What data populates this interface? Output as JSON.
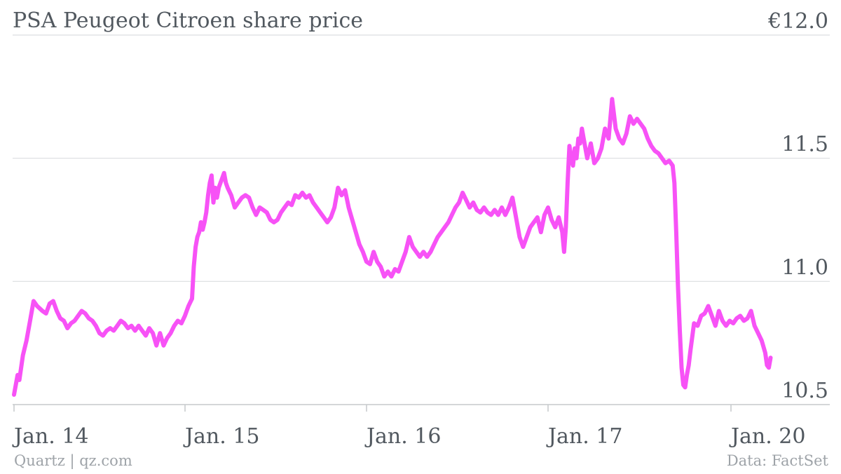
{
  "chart_data": {
    "type": "line",
    "title": "PSA Peugeot Citroen share price",
    "xlabel": "",
    "ylabel": "",
    "y_unit_prefix": "€",
    "ylim": [
      10.5,
      12.0
    ],
    "y_ticks": [
      {
        "value": 12.0,
        "label": "€12.0"
      },
      {
        "value": 11.5,
        "label": "11.5"
      },
      {
        "value": 11.0,
        "label": "11.0"
      },
      {
        "value": 10.5,
        "label": "10.5"
      }
    ],
    "x_ticks": [
      {
        "index": 0,
        "label": "Jan. 14"
      },
      {
        "index": 1,
        "label": "Jan. 15"
      },
      {
        "index": 2,
        "label": "Jan. 16"
      },
      {
        "index": 3,
        "label": "Jan. 17"
      },
      {
        "index": 4,
        "label": "Jan. 20"
      }
    ],
    "x_range": [
      0,
      4.55
    ],
    "grid": true,
    "series": [
      {
        "color": "#f752f6",
        "points": [
          [
            0.0,
            10.54
          ],
          [
            0.02,
            10.62
          ],
          [
            0.03,
            10.6
          ],
          [
            0.05,
            10.7
          ],
          [
            0.07,
            10.76
          ],
          [
            0.09,
            10.84
          ],
          [
            0.11,
            10.92
          ],
          [
            0.13,
            10.9
          ],
          [
            0.16,
            10.88
          ],
          [
            0.18,
            10.87
          ],
          [
            0.2,
            10.91
          ],
          [
            0.22,
            10.92
          ],
          [
            0.24,
            10.88
          ],
          [
            0.26,
            10.85
          ],
          [
            0.28,
            10.84
          ],
          [
            0.3,
            10.81
          ],
          [
            0.32,
            10.83
          ],
          [
            0.34,
            10.84
          ],
          [
            0.36,
            10.86
          ],
          [
            0.38,
            10.88
          ],
          [
            0.4,
            10.87
          ],
          [
            0.42,
            10.85
          ],
          [
            0.44,
            10.84
          ],
          [
            0.46,
            10.82
          ],
          [
            0.48,
            10.79
          ],
          [
            0.5,
            10.78
          ],
          [
            0.52,
            10.8
          ],
          [
            0.54,
            10.81
          ],
          [
            0.56,
            10.8
          ],
          [
            0.58,
            10.82
          ],
          [
            0.6,
            10.84
          ],
          [
            0.62,
            10.83
          ],
          [
            0.64,
            10.81
          ],
          [
            0.66,
            10.82
          ],
          [
            0.68,
            10.8
          ],
          [
            0.7,
            10.82
          ],
          [
            0.72,
            10.8
          ],
          [
            0.74,
            10.78
          ],
          [
            0.76,
            10.81
          ],
          [
            0.78,
            10.79
          ],
          [
            0.8,
            10.74
          ],
          [
            0.82,
            10.79
          ],
          [
            0.84,
            10.74
          ],
          [
            0.86,
            10.77
          ],
          [
            0.88,
            10.79
          ],
          [
            0.9,
            10.82
          ],
          [
            0.92,
            10.84
          ],
          [
            0.94,
            10.83
          ],
          [
            0.96,
            10.86
          ],
          [
            0.98,
            10.9
          ],
          [
            1.0,
            10.93
          ],
          [
            1.01,
            11.06
          ],
          [
            1.02,
            11.14
          ],
          [
            1.03,
            11.18
          ],
          [
            1.04,
            11.2
          ],
          [
            1.05,
            11.24
          ],
          [
            1.06,
            11.21
          ],
          [
            1.07,
            11.24
          ],
          [
            1.08,
            11.28
          ],
          [
            1.09,
            11.35
          ],
          [
            1.1,
            11.4
          ],
          [
            1.11,
            11.43
          ],
          [
            1.12,
            11.32
          ],
          [
            1.13,
            11.38
          ],
          [
            1.14,
            11.34
          ],
          [
            1.15,
            11.38
          ],
          [
            1.16,
            11.4
          ],
          [
            1.17,
            11.42
          ],
          [
            1.18,
            11.44
          ],
          [
            1.19,
            11.4
          ],
          [
            1.2,
            11.38
          ],
          [
            1.22,
            11.35
          ],
          [
            1.24,
            11.3
          ],
          [
            1.26,
            11.32
          ],
          [
            1.28,
            11.34
          ],
          [
            1.3,
            11.35
          ],
          [
            1.32,
            11.34
          ],
          [
            1.34,
            11.3
          ],
          [
            1.36,
            11.27
          ],
          [
            1.38,
            11.3
          ],
          [
            1.4,
            11.29
          ],
          [
            1.42,
            11.28
          ],
          [
            1.44,
            11.25
          ],
          [
            1.46,
            11.24
          ],
          [
            1.48,
            11.25
          ],
          [
            1.5,
            11.28
          ],
          [
            1.52,
            11.3
          ],
          [
            1.54,
            11.32
          ],
          [
            1.56,
            11.31
          ],
          [
            1.58,
            11.35
          ],
          [
            1.6,
            11.34
          ],
          [
            1.62,
            11.36
          ],
          [
            1.64,
            11.34
          ],
          [
            1.66,
            11.35
          ],
          [
            1.68,
            11.32
          ],
          [
            1.7,
            11.3
          ],
          [
            1.72,
            11.28
          ],
          [
            1.74,
            11.26
          ],
          [
            1.76,
            11.24
          ],
          [
            1.78,
            11.26
          ],
          [
            1.8,
            11.3
          ],
          [
            1.82,
            11.38
          ],
          [
            1.84,
            11.35
          ],
          [
            1.86,
            11.37
          ],
          [
            1.88,
            11.3
          ],
          [
            1.9,
            11.25
          ],
          [
            1.92,
            11.2
          ],
          [
            1.94,
            11.15
          ],
          [
            1.96,
            11.12
          ],
          [
            1.98,
            11.08
          ],
          [
            2.0,
            11.07
          ],
          [
            2.02,
            11.12
          ],
          [
            2.04,
            11.08
          ],
          [
            2.06,
            11.06
          ],
          [
            2.08,
            11.02
          ],
          [
            2.1,
            11.04
          ],
          [
            2.12,
            11.02
          ],
          [
            2.14,
            11.05
          ],
          [
            2.16,
            11.04
          ],
          [
            2.18,
            11.08
          ],
          [
            2.2,
            11.12
          ],
          [
            2.22,
            11.18
          ],
          [
            2.24,
            11.14
          ],
          [
            2.26,
            11.12
          ],
          [
            2.28,
            11.1
          ],
          [
            2.3,
            11.12
          ],
          [
            2.32,
            11.1
          ],
          [
            2.34,
            11.12
          ],
          [
            2.36,
            11.15
          ],
          [
            2.38,
            11.18
          ],
          [
            2.4,
            11.2
          ],
          [
            2.42,
            11.22
          ],
          [
            2.44,
            11.24
          ],
          [
            2.46,
            11.27
          ],
          [
            2.48,
            11.3
          ],
          [
            2.5,
            11.32
          ],
          [
            2.52,
            11.36
          ],
          [
            2.54,
            11.33
          ],
          [
            2.56,
            11.3
          ],
          [
            2.58,
            11.32
          ],
          [
            2.6,
            11.29
          ],
          [
            2.62,
            11.28
          ],
          [
            2.64,
            11.3
          ],
          [
            2.66,
            11.28
          ],
          [
            2.68,
            11.27
          ],
          [
            2.7,
            11.29
          ],
          [
            2.72,
            11.27
          ],
          [
            2.74,
            11.3
          ],
          [
            2.76,
            11.27
          ],
          [
            2.78,
            11.3
          ],
          [
            2.8,
            11.34
          ],
          [
            2.82,
            11.26
          ],
          [
            2.84,
            11.18
          ],
          [
            2.86,
            11.14
          ],
          [
            2.88,
            11.18
          ],
          [
            2.9,
            11.22
          ],
          [
            2.92,
            11.24
          ],
          [
            2.94,
            11.26
          ],
          [
            2.96,
            11.2
          ],
          [
            2.98,
            11.27
          ],
          [
            3.0,
            11.3
          ],
          [
            3.02,
            11.25
          ],
          [
            3.04,
            11.22
          ],
          [
            3.06,
            11.26
          ],
          [
            3.08,
            11.2
          ],
          [
            3.09,
            11.12
          ],
          [
            3.1,
            11.22
          ],
          [
            3.11,
            11.4
          ],
          [
            3.12,
            11.55
          ],
          [
            3.13,
            11.5
          ],
          [
            3.14,
            11.47
          ],
          [
            3.15,
            11.54
          ],
          [
            3.16,
            11.5
          ],
          [
            3.17,
            11.58
          ],
          [
            3.18,
            11.56
          ],
          [
            3.19,
            11.62
          ],
          [
            3.2,
            11.58
          ],
          [
            3.22,
            11.5
          ],
          [
            3.24,
            11.56
          ],
          [
            3.26,
            11.48
          ],
          [
            3.28,
            11.5
          ],
          [
            3.3,
            11.54
          ],
          [
            3.32,
            11.62
          ],
          [
            3.34,
            11.58
          ],
          [
            3.36,
            11.74
          ],
          [
            3.38,
            11.62
          ],
          [
            3.4,
            11.58
          ],
          [
            3.42,
            11.56
          ],
          [
            3.44,
            11.6
          ],
          [
            3.46,
            11.67
          ],
          [
            3.48,
            11.64
          ],
          [
            3.5,
            11.66
          ],
          [
            3.52,
            11.64
          ],
          [
            3.54,
            11.62
          ],
          [
            3.56,
            11.58
          ],
          [
            3.58,
            11.55
          ],
          [
            3.6,
            11.53
          ],
          [
            3.62,
            11.52
          ],
          [
            3.64,
            11.5
          ],
          [
            3.66,
            11.48
          ],
          [
            3.68,
            11.49
          ],
          [
            3.7,
            11.47
          ],
          [
            3.71,
            11.4
          ],
          [
            3.72,
            11.2
          ],
          [
            3.73,
            10.98
          ],
          [
            3.74,
            10.8
          ],
          [
            3.75,
            10.65
          ],
          [
            3.76,
            10.58
          ],
          [
            3.77,
            10.57
          ],
          [
            3.78,
            10.62
          ],
          [
            3.79,
            10.66
          ],
          [
            3.8,
            10.72
          ],
          [
            3.82,
            10.83
          ],
          [
            3.84,
            10.82
          ],
          [
            3.86,
            10.86
          ],
          [
            3.88,
            10.87
          ],
          [
            3.9,
            10.9
          ],
          [
            3.92,
            10.86
          ],
          [
            3.94,
            10.82
          ],
          [
            3.96,
            10.88
          ],
          [
            3.98,
            10.84
          ],
          [
            4.0,
            10.82
          ],
          [
            4.02,
            10.84
          ],
          [
            4.04,
            10.83
          ],
          [
            4.06,
            10.85
          ],
          [
            4.08,
            10.86
          ],
          [
            4.1,
            10.84
          ],
          [
            4.12,
            10.85
          ],
          [
            4.14,
            10.88
          ],
          [
            4.16,
            10.82
          ],
          [
            4.18,
            10.79
          ],
          [
            4.2,
            10.76
          ],
          [
            4.22,
            10.71
          ],
          [
            4.23,
            10.66
          ],
          [
            4.24,
            10.65
          ],
          [
            4.25,
            10.69
          ]
        ]
      }
    ]
  },
  "footer": {
    "credit": "Quartz | qz.com",
    "source": "Data: FactSet"
  }
}
